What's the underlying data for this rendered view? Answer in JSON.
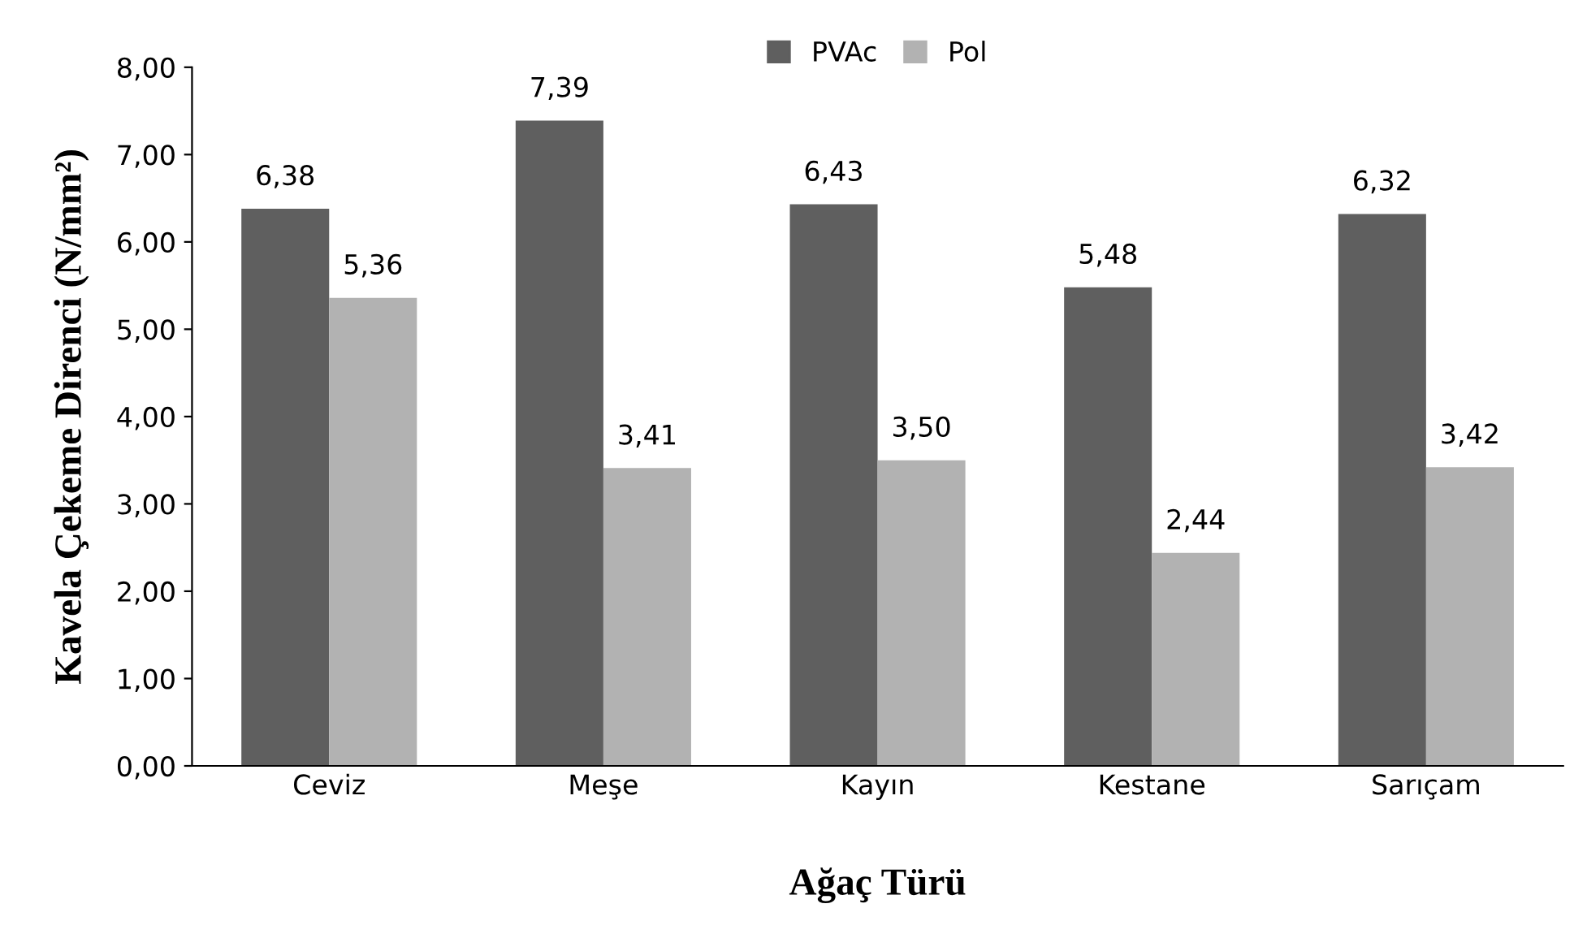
{
  "chart_data": {
    "type": "bar",
    "xlabel": "Ağaç Türü",
    "ylabel": "Kavela Çekeme Direnci (N/mm²)",
    "categories": [
      "Ceviz",
      "Meşe",
      "Kayın",
      "Kestane",
      "Sarıçam"
    ],
    "series": [
      {
        "name": "PVAc",
        "color": "#5f5f5f",
        "values": [
          6.38,
          7.39,
          6.43,
          5.48,
          6.32
        ],
        "value_labels": [
          "6,38",
          "7,39",
          "6,43",
          "5,48",
          "6,32"
        ]
      },
      {
        "name": "Pol",
        "color": "#b2b2b2",
        "values": [
          5.36,
          3.41,
          3.5,
          2.44,
          3.42
        ],
        "value_labels": [
          "5,36",
          "3,41",
          "3,50",
          "2,44",
          "3,42"
        ]
      }
    ],
    "ylim": [
      0,
      8
    ],
    "yticks": [
      {
        "value": 0,
        "label": "0,00"
      },
      {
        "value": 1,
        "label": "1,00"
      },
      {
        "value": 2,
        "label": "2,00"
      },
      {
        "value": 3,
        "label": "3,00"
      },
      {
        "value": 4,
        "label": "4,00"
      },
      {
        "value": 5,
        "label": "5,00"
      },
      {
        "value": 6,
        "label": "6,00"
      },
      {
        "value": 7,
        "label": "7,00"
      },
      {
        "value": 8,
        "label": "8,00"
      }
    ],
    "grid": false,
    "legend": "top"
  }
}
